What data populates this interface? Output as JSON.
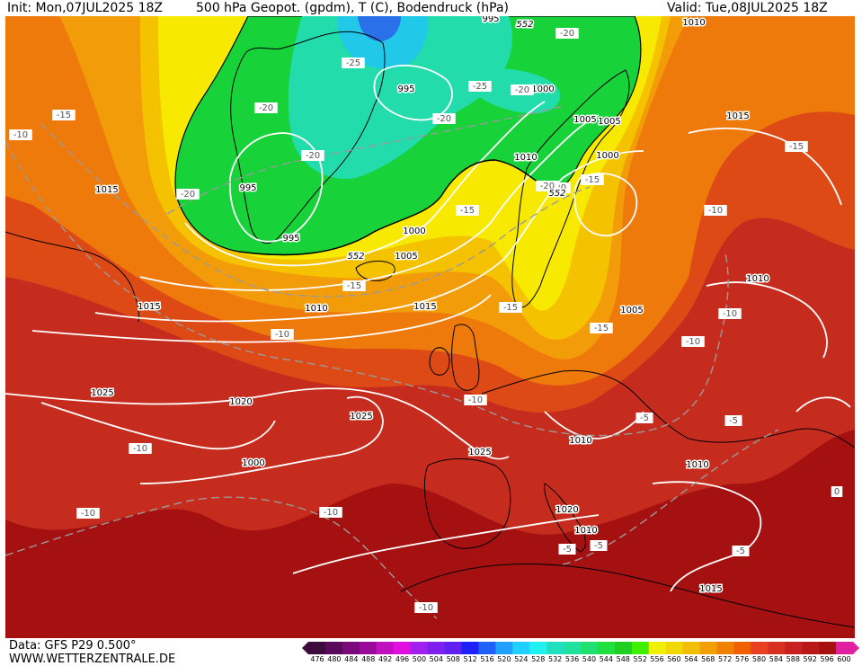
{
  "header": {
    "init": "Init: Mon,07JUL2025 18Z",
    "title": "500 hPa Geopot. (gpdm), T (C), Bodendruck (hPa)",
    "valid": "Valid: Tue,08JUL2025 18Z"
  },
  "footer": {
    "data": "Data: GFS P29 0.500°",
    "site": "WWW.WETTERZENTRALE.DE"
  },
  "colorbar": {
    "labels": [
      "476",
      "480",
      "484",
      "488",
      "492",
      "496",
      "500",
      "504",
      "508",
      "512",
      "516",
      "520",
      "524",
      "528",
      "532",
      "536",
      "540",
      "544",
      "548",
      "552",
      "556",
      "560",
      "564",
      "568",
      "572",
      "576",
      "580",
      "584",
      "588",
      "592",
      "596",
      "600"
    ],
    "colors": [
      "#3d0a3d",
      "#5a0a5a",
      "#7a0a7a",
      "#9a0a9a",
      "#c010c0",
      "#e010e0",
      "#a020f0",
      "#8020f0",
      "#6020f0",
      "#2020ff",
      "#2060ff",
      "#20a0ff",
      "#20d0ff",
      "#20f0f0",
      "#20e0c0",
      "#20e0a0",
      "#20e070",
      "#20e040",
      "#20d020",
      "#40f000",
      "#f0f000",
      "#f0d800",
      "#f0c000",
      "#f0a000",
      "#f08000",
      "#f06000",
      "#e84020",
      "#d83020",
      "#c82020",
      "#b81818",
      "#a81010",
      "#e020a0"
    ]
  },
  "map_colors": {
    "ocean_south": "#a51010",
    "red": "#c62c1e",
    "redorange": "#dd4a16",
    "orange": "#ee7a0c",
    "amber": "#f39c0a",
    "gold": "#f5c200",
    "yellow": "#f7ea00",
    "green": "#18d23a",
    "teal": "#22dcac",
    "cyan": "#22c8e8",
    "blue": "#2a70e8"
  },
  "pressure_labels": [
    "995",
    "995",
    "995",
    "995",
    "1000",
    "1000",
    "1000",
    "1005",
    "1005",
    "1005",
    "1005",
    "1010",
    "1010",
    "1010",
    "1010",
    "1010",
    "1010",
    "1010",
    "1015",
    "1015",
    "1015",
    "1015",
    "1015",
    "1020",
    "1020",
    "1025",
    "1025",
    "1025",
    "1000"
  ],
  "temp_labels": [
    "-25",
    "-25",
    "-20",
    "-20",
    "-20",
    "-20",
    "-20",
    "-20",
    "-20",
    "-20",
    "-15",
    "-15",
    "-15",
    "-15",
    "-15",
    "-15",
    "-15",
    "-10",
    "-10",
    "-10",
    "-10",
    "-10",
    "-10",
    "-10",
    "-10",
    "-10",
    "-10",
    "-5",
    "-5",
    "-5",
    "-5",
    "-5",
    "0"
  ],
  "contour_labels": [
    "552",
    "552",
    "552"
  ]
}
